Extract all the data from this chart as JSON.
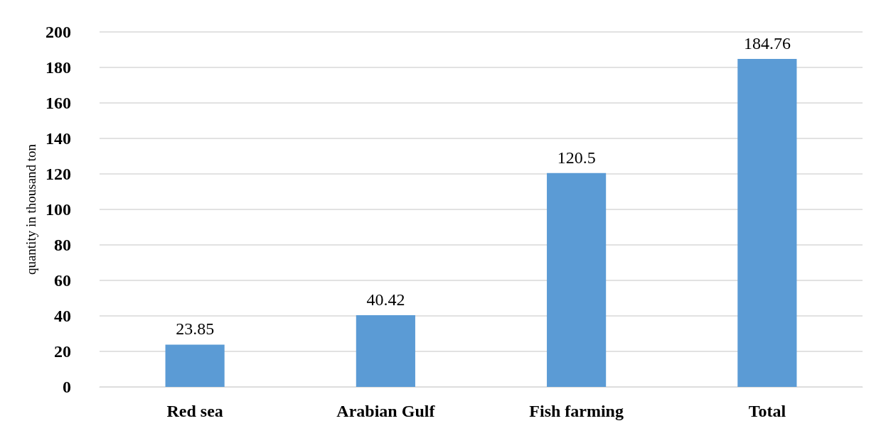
{
  "chart_data": {
    "type": "bar",
    "ylabel": "quantity in thousand ton",
    "categories": [
      "Red sea",
      "Arabian Gulf",
      "Fish farming",
      "Total"
    ],
    "values": [
      23.85,
      40.42,
      120.5,
      184.76
    ],
    "color": "#5b9bd5",
    "ylim": [
      0,
      200
    ],
    "yticks": [
      0,
      20,
      40,
      60,
      80,
      100,
      120,
      140,
      160,
      180,
      200
    ],
    "grid": "y",
    "data_labels": true
  }
}
